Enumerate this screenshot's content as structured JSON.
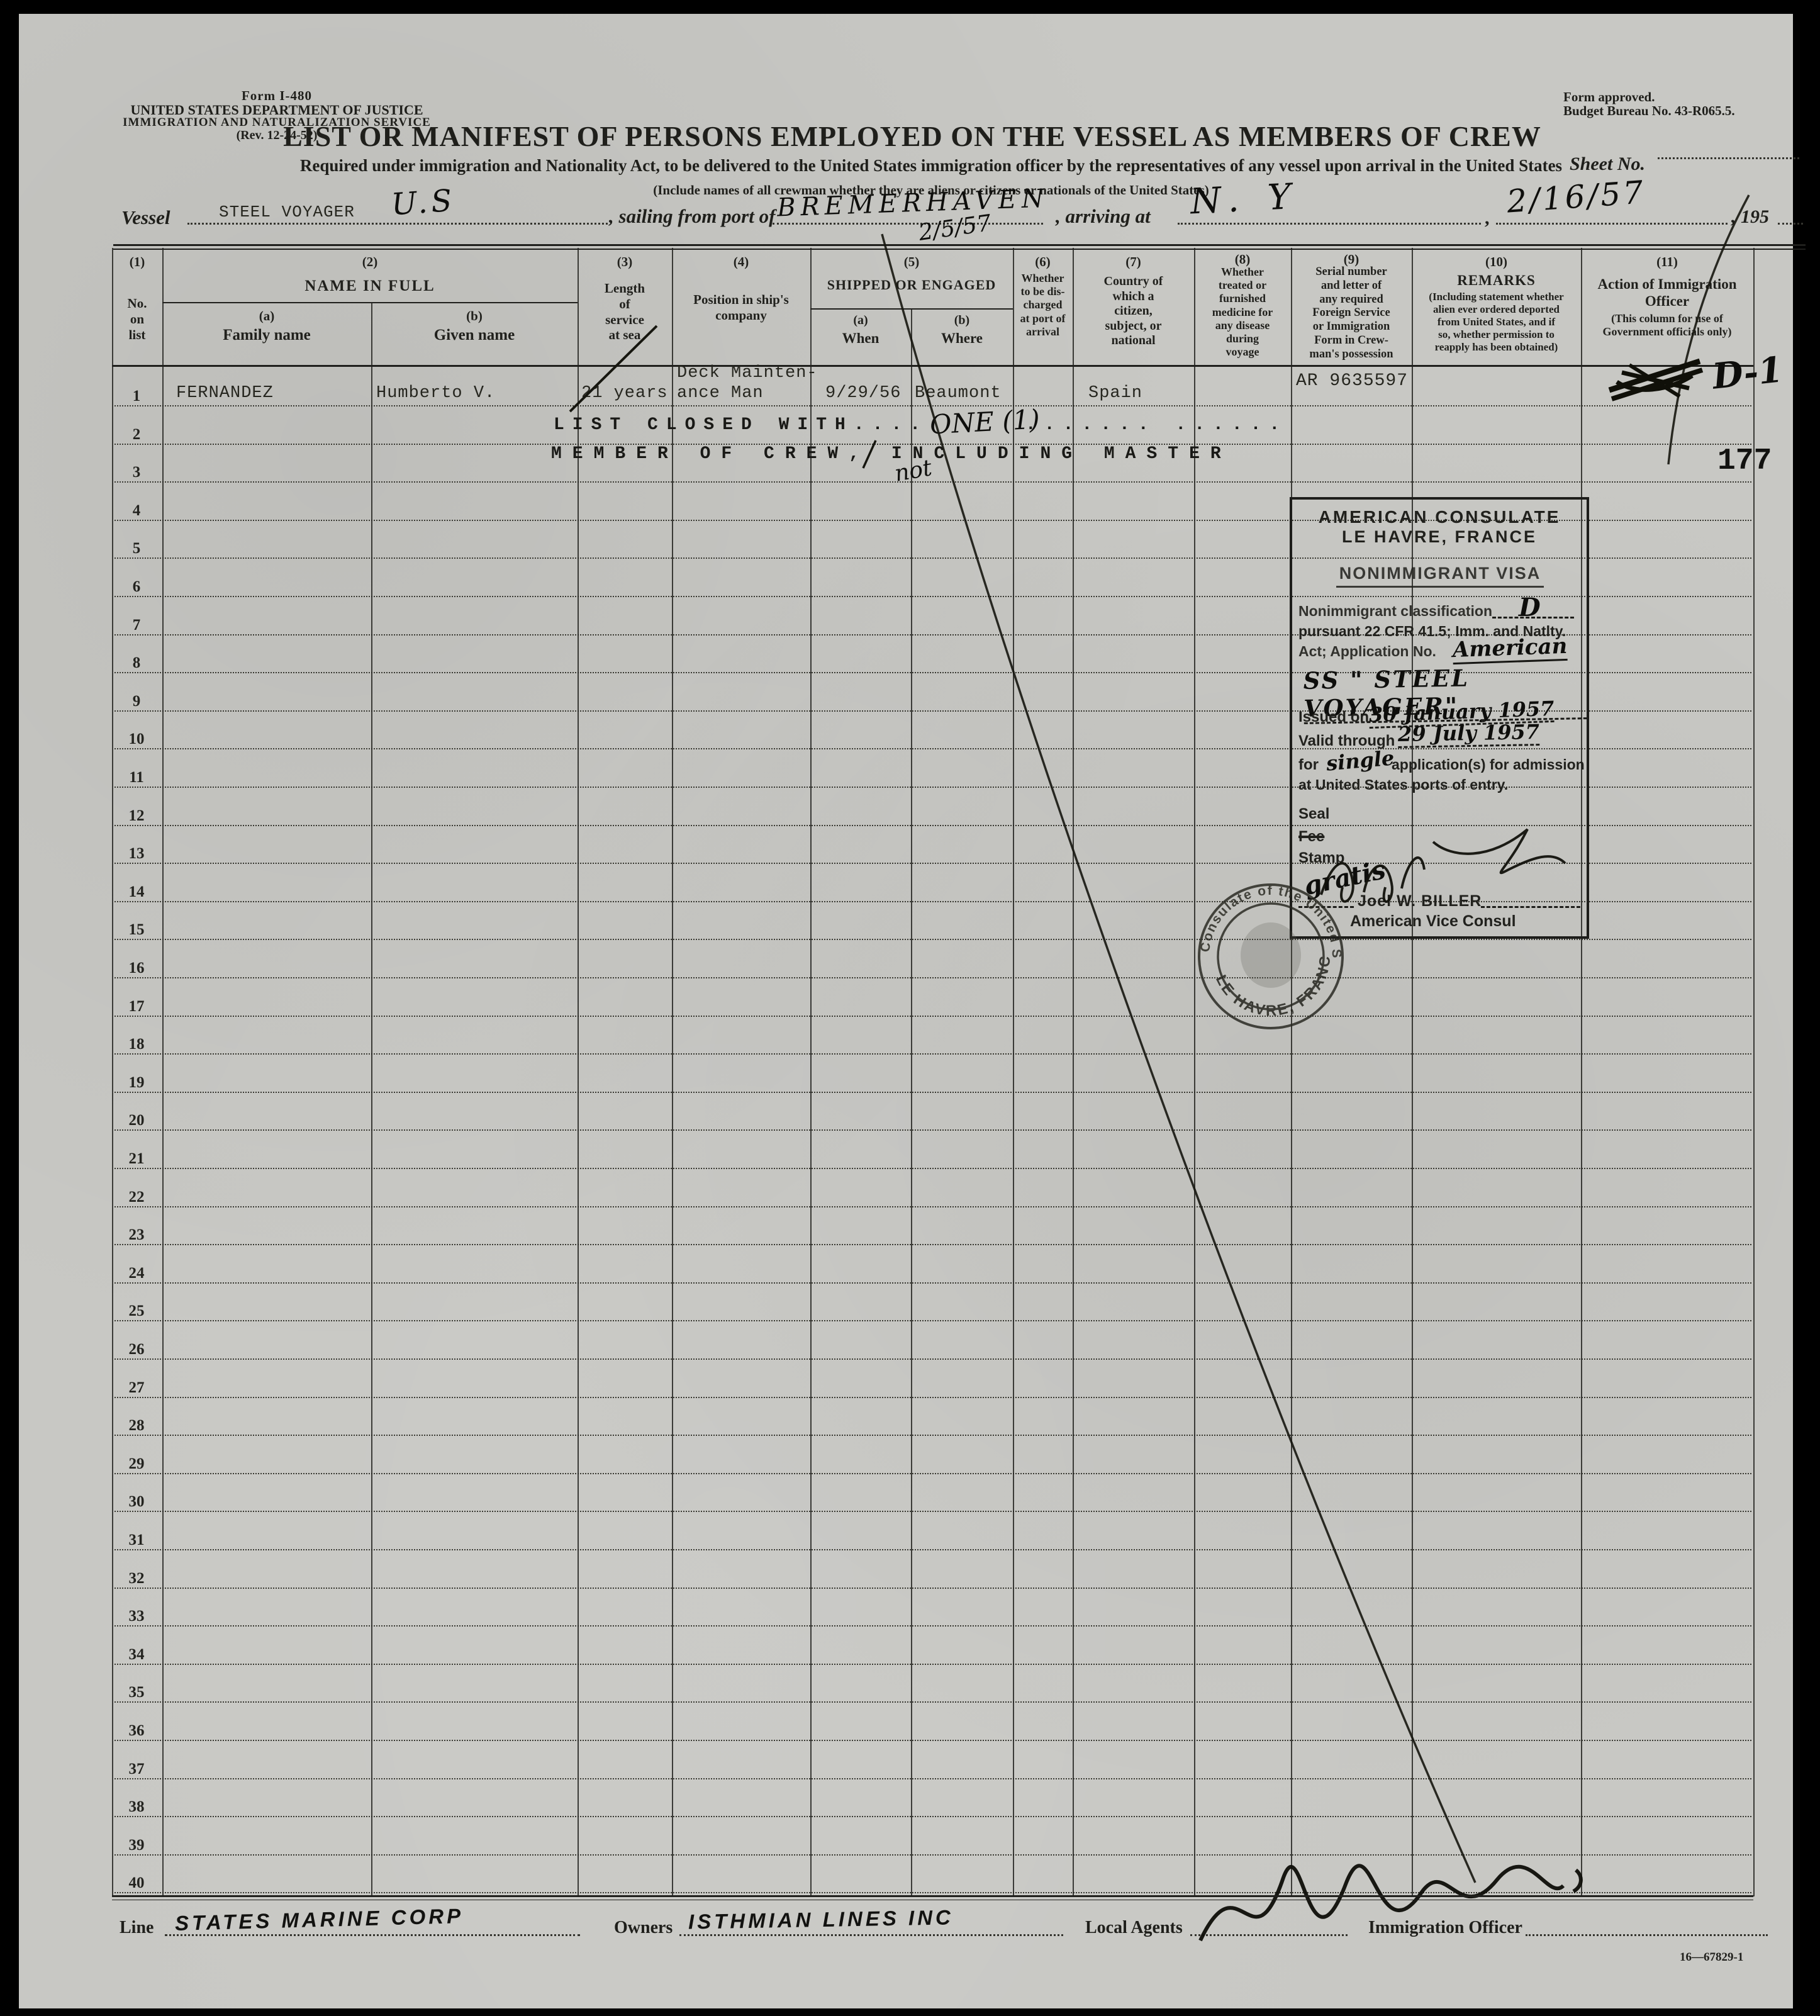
{
  "page": {
    "form_number": "Form I-480",
    "agency_line1": "UNITED STATES DEPARTMENT OF JUSTICE",
    "agency_line2": "IMMIGRATION AND NATURALIZATION SERVICE",
    "revision": "(Rev. 12-24-52)",
    "approved_line1": "Form approved.",
    "approved_line2": "Budget Bureau No. 43-R065.5.",
    "title": "LIST OR MANIFEST OF PERSONS EMPLOYED ON THE VESSEL AS MEMBERS OF CREW",
    "sheet_no_label": "Sheet No.",
    "subtitle": "Required under immigration and Nationality Act, to be delivered to the United States immigration officer by the representatives of any vessel upon arrival in the United States",
    "include_note": "(Include names of all crewman whether they are aliens or citizens or nationals of the United States)",
    "print_code": "16—67829-1"
  },
  "vessel_line": {
    "vessel_label": "Vessel",
    "vessel_typed": "STEEL VOYAGER",
    "vessel_hand": "U.S",
    "sailing_label": ", sailing from port of",
    "port_hand": "BREMERHAVEN",
    "port_date_hand": "2/5/57",
    "arriving_label": ", arriving at",
    "arrival_port_hand": "N. Y",
    "arrival_date_hand": "2/16/57",
    "year_label": ", 195"
  },
  "table": {
    "headers": {
      "c1_num": "(1)",
      "c1_label": "No.\non\nlist",
      "c2_num": "(2)",
      "c2_label": "NAME IN FULL",
      "c2a_num": "(a)",
      "c2a_label": "Family name",
      "c2b_num": "(b)",
      "c2b_label": "Given name",
      "c3_num": "(3)",
      "c3_label": "Length\nof\nservice\nat sea",
      "c4_num": "(4)",
      "c4_label": "Position in ship's\ncompany",
      "c5_num": "(5)",
      "c5_label": "SHIPPED OR ENGAGED",
      "c5a_num": "(a)",
      "c5a_label": "When",
      "c5b_num": "(b)",
      "c5b_label": "Where",
      "c6_num": "(6)",
      "c6_label": "Whether\nto be dis-\ncharged\nat port of\narrival",
      "c7_num": "(7)",
      "c7_label": "Country of\nwhich a\ncitizen,\nsubject, or\nnational",
      "c8_num": "(8)",
      "c8_label": "Whether\ntreated or\nfurnished\nmedicine for\nany disease\nduring\nvoyage",
      "c9_num": "(9)",
      "c9_label": "Serial number\nand letter of\nany required\nForeign Service\nor Immigration\nForm in Crew-\nman's possession",
      "c10_num": "(10)",
      "c10_label": "REMARKS",
      "c10_note": "(Including statement whether\nalien ever ordered deported\nfrom United States, and if\nso, whether permission to\nreapply has been obtained)",
      "c11_num": "(11)",
      "c11_label": "Action of Immigration\nOfficer",
      "c11_note": "(This column for use of\nGovernment officials only)"
    },
    "row_numbers": [
      "1",
      "2",
      "3",
      "4",
      "5",
      "6",
      "7",
      "8",
      "9",
      "10",
      "11",
      "12",
      "13",
      "14",
      "15",
      "16",
      "17",
      "18",
      "19",
      "20",
      "21",
      "22",
      "23",
      "24",
      "25",
      "26",
      "27",
      "28",
      "29",
      "30",
      "31",
      "32",
      "33",
      "34",
      "35",
      "36",
      "37",
      "38",
      "39",
      "40"
    ],
    "row1": {
      "family_name": "FERNANDEZ",
      "given_name": "Humberto V.",
      "service": "21 years",
      "position_line1": "Deck Mainten-",
      "position_line2": "ance Man",
      "shipped_when": "9/29/56",
      "shipped_where": "Beaumont",
      "country": "Spain",
      "serial": "AR 9635597",
      "action_hand": "D-1"
    },
    "row2_stamp": "LIST CLOSED WITH....",
    "row2_hand": "ONE (1)",
    "row2_dots": ".......  ......",
    "row3_stamp": "MEMBER OF CREW, INCLUDING MASTER",
    "row3_hand": "not",
    "page_stamp": "177"
  },
  "consulate_stamp": {
    "title1": "AMERICAN CONSULATE",
    "title2": "LE HAVRE, FRANCE",
    "visa_type": "NONIMMIGRANT VISA",
    "class_label": "Nonimmigrant classification",
    "class_hand": "D",
    "pursuant_line": "pursuant 22 CFR 41.5; Imm. and Natlty.",
    "act_label": "Act; Application No.",
    "act_hand": "American",
    "vessel_hand": "SS \" STEEL VOYAGER\"",
    "issued_label": "Issued on",
    "issued_hand": "30 January 1957",
    "valid_label": "Valid through",
    "valid_hand": "29 July 1957",
    "for_label": "for",
    "for_hand": "single",
    "application_label": "application(s) for admission",
    "ports_label": "at United States ports of entry.",
    "seal_label": "Seal",
    "fee_label": "Fee",
    "stamp_label": "Stamp",
    "gratis_hand": "gratis",
    "signer_name": "Joel W. BILLER",
    "signer_title": "American Vice Consul"
  },
  "seal": {
    "ring_top": "CONSULATE OF THE UNITED STATES",
    "ring_bottom": "LE HAVRE, FRANCE"
  },
  "footer": {
    "line_label": "Line",
    "line_hand": "STATES MARINE CORP",
    "owners_label": "Owners",
    "owners_hand": "ISTHMIAN LINES INC",
    "local_agents_label": "Local Agents",
    "officer_label": "Immigration Officer"
  },
  "colors": {
    "paper": "#c8c8c4",
    "ink": "#1f1f1b",
    "background": "#000000"
  }
}
